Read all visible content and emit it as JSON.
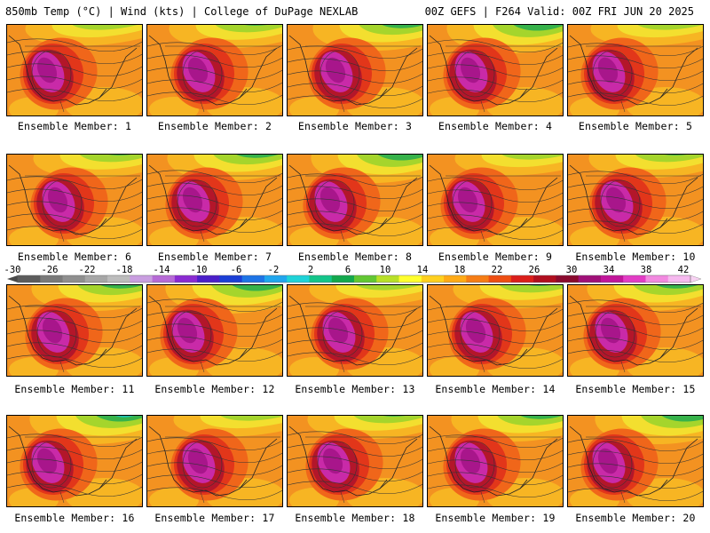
{
  "header": {
    "left": "850mb Temp (°C) | Wind (kts) | College of DuPage NEXLAB",
    "right": "00Z GEFS | F264 Valid: 00Z FRI JUN 20 2025"
  },
  "colorbar": {
    "tick_labels": [
      "-30",
      "-26",
      "-22",
      "-18",
      "-14",
      "-10",
      "-6",
      "-2",
      "2",
      "6",
      "10",
      "14",
      "18",
      "22",
      "26",
      "30",
      "34",
      "38",
      "42"
    ],
    "colors": [
      "#5c5c5c",
      "#7a7a7a",
      "#8f8f8f",
      "#a6a6a6",
      "#bcbcbc",
      "#c99ee0",
      "#b66ad6",
      "#8a2bd1",
      "#4b1fc9",
      "#1b3fd6",
      "#1e74e6",
      "#21a6ee",
      "#1fd3d8",
      "#14c58a",
      "#13a84d",
      "#62c733",
      "#b8e028",
      "#ffff2e",
      "#ffd01f",
      "#ffaa16",
      "#f67d15",
      "#ee4e12",
      "#db1f1b",
      "#b00f1f",
      "#8a0a2e",
      "#a01078",
      "#c1169a",
      "#e23cc5",
      "#f289e0",
      "#f6b9ef"
    ]
  },
  "map_colors": {
    "hot_core": "#a8168b",
    "magenta": "#c92aa8",
    "dark_red": "#b3162a",
    "red": "#e2361a",
    "orange_red": "#f0661a",
    "orange": "#f39221",
    "gold": "#f7b523",
    "yellow": "#f3df2f",
    "lime": "#a5d52c",
    "green": "#37b24a",
    "teal": "#1cc2b0",
    "blue": "#2a86d9",
    "ocean": "#f39e24"
  },
  "panels": [
    {
      "label": "Ensemble Member: 1"
    },
    {
      "label": "Ensemble Member: 2"
    },
    {
      "label": "Ensemble Member: 3"
    },
    {
      "label": "Ensemble Member: 4"
    },
    {
      "label": "Ensemble Member: 5"
    },
    {
      "label": "Ensemble Member: 6"
    },
    {
      "label": "Ensemble Member: 7"
    },
    {
      "label": "Ensemble Member: 8"
    },
    {
      "label": "Ensemble Member: 9"
    },
    {
      "label": "Ensemble Member: 10"
    },
    {
      "label": "Ensemble Member: 11"
    },
    {
      "label": "Ensemble Member: 12"
    },
    {
      "label": "Ensemble Member: 13"
    },
    {
      "label": "Ensemble Member: 14"
    },
    {
      "label": "Ensemble Member: 15"
    },
    {
      "label": "Ensemble Member: 16"
    },
    {
      "label": "Ensemble Member: 17"
    },
    {
      "label": "Ensemble Member: 18"
    },
    {
      "label": "Ensemble Member: 19"
    },
    {
      "label": "Ensemble Member: 20"
    }
  ]
}
